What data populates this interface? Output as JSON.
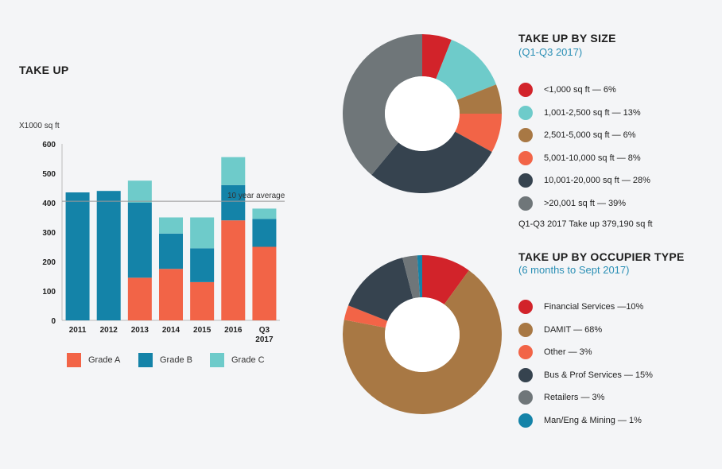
{
  "chart_data": [
    {
      "type": "bar",
      "stacked": true,
      "title": "TAKE UP",
      "ylabel": "X1000 sq ft",
      "ylim": [
        0,
        600
      ],
      "yticks": [
        0,
        100,
        200,
        300,
        400,
        500,
        600
      ],
      "categories": [
        "2011",
        "2012",
        "2013",
        "2014",
        "2015",
        "2016",
        "Q3 2017"
      ],
      "series": [
        {
          "name": "Grade A",
          "color": "#f26447",
          "values": [
            0,
            0,
            145,
            175,
            130,
            340,
            250
          ]
        },
        {
          "name": "Grade B",
          "color": "#1483a8",
          "values": [
            435,
            440,
            255,
            120,
            115,
            120,
            95
          ]
        },
        {
          "name": "Grade C",
          "color": "#6ecbca",
          "values": [
            0,
            0,
            75,
            55,
            105,
            95,
            35
          ]
        }
      ],
      "reference_line": {
        "label": "10 year average",
        "value": 405
      }
    },
    {
      "type": "pie",
      "donut": true,
      "title": "TAKE UP BY SIZE",
      "subtitle": "(Q1-Q3 2017)",
      "slices": [
        {
          "label": "<1,000 sq ft — 6%",
          "value": 6,
          "color": "#d2232a"
        },
        {
          "label": "1,001-2,500 sq ft — 13%",
          "value": 13,
          "color": "#6ecbca"
        },
        {
          "label": "2,501-5,000 sq ft — 6%",
          "value": 6,
          "color": "#a87844"
        },
        {
          "label": "5,001-10,000 sq ft — 8%",
          "value": 8,
          "color": "#f26447"
        },
        {
          "label": "10,001-20,000 sq ft — 28%",
          "value": 28,
          "color": "#36434f"
        },
        {
          "label": ">20,001 sq ft — 39%",
          "value": 39,
          "color": "#6f7679"
        }
      ],
      "note": "Q1-Q3 2017 Take up 379,190 sq ft"
    },
    {
      "type": "pie",
      "donut": true,
      "title": "TAKE UP BY OCCUPIER TYPE",
      "subtitle": "(6 months to Sept 2017)",
      "slices": [
        {
          "label": "Financial Services —10%",
          "value": 10,
          "color": "#d2232a"
        },
        {
          "label": "DAMIT — 68%",
          "value": 68,
          "color": "#a87844"
        },
        {
          "label": "Other — 3%",
          "value": 3,
          "color": "#f26447"
        },
        {
          "label": "Bus & Prof Services — 15%",
          "value": 15,
          "color": "#36434f"
        },
        {
          "label": "Retailers — 3%",
          "value": 3,
          "color": "#6f7679"
        },
        {
          "label": "Man/Eng & Mining — 1%",
          "value": 1,
          "color": "#1483a8"
        }
      ]
    }
  ]
}
